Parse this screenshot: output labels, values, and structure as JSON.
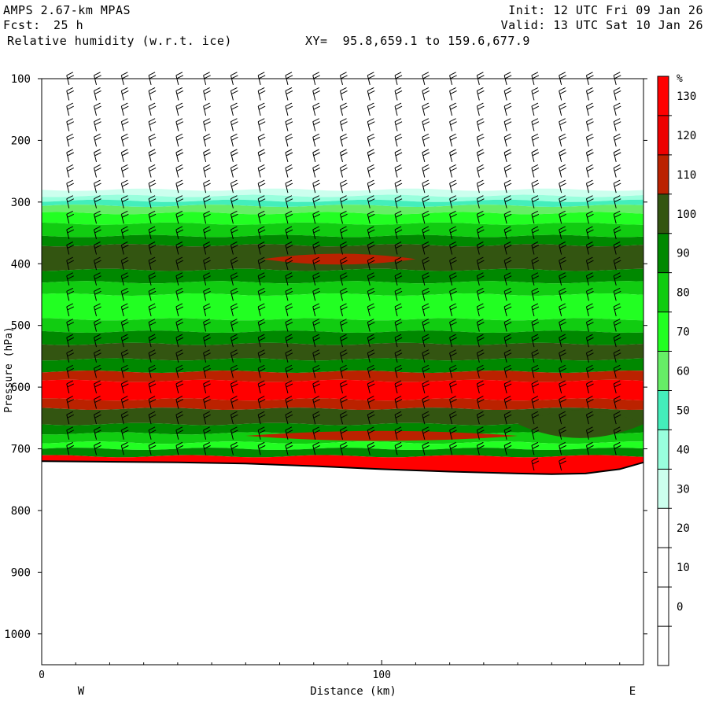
{
  "header": {
    "model": "AMPS 2.67-km MPAS",
    "init": "Init: 12 UTC Fri 09 Jan 26",
    "fcst_label": "Fcst:",
    "fcst_value": "25 h",
    "valid": "Valid: 13 UTC Sat 10 Jan 26",
    "field": "Relative humidity (w.r.t. ice)",
    "xy": "XY=  95.8,659.1 to 159.6,677.9"
  },
  "chart_data": {
    "type": "heatmap",
    "title": "Relative humidity (w.r.t. ice)",
    "xlabel": "Distance (km)",
    "ylabel": "Pressure (hPa)",
    "x_tick_labels": [
      "0",
      "100"
    ],
    "x_ticks": [
      0,
      100
    ],
    "xlim": [
      0,
      177
    ],
    "y_tick_labels": [
      "100",
      "200",
      "300",
      "400",
      "500",
      "600",
      "700",
      "800",
      "900",
      "1000"
    ],
    "y_ticks": [
      100,
      200,
      300,
      400,
      500,
      600,
      700,
      800,
      900,
      1000
    ],
    "ylim": [
      100,
      1050
    ],
    "direction_left": "W",
    "direction_right": "E",
    "colorbar": {
      "unit": "%",
      "levels": [
        0,
        10,
        20,
        30,
        40,
        50,
        60,
        70,
        80,
        90,
        100,
        110,
        120,
        130
      ],
      "colors": [
        "#ffffff",
        "#ffffff",
        "#ffffff",
        "#ccffee",
        "#99ffdd",
        "#44eebb",
        "#66ee66",
        "#22ff22",
        "#11cc11",
        "#008800",
        "#335511",
        "#bb2200",
        "#ee0000",
        "#ff0000"
      ]
    },
    "layers": [
      {
        "pmin": 280,
        "pmax": 290,
        "rh": 30
      },
      {
        "pmin": 290,
        "pmax": 298,
        "rh": 40
      },
      {
        "pmin": 298,
        "pmax": 306,
        "rh": 50
      },
      {
        "pmin": 306,
        "pmax": 318,
        "rh": 60
      },
      {
        "pmin": 318,
        "pmax": 335,
        "rh": 70
      },
      {
        "pmin": 335,
        "pmax": 355,
        "rh": 80
      },
      {
        "pmin": 355,
        "pmax": 370,
        "rh": 90
      },
      {
        "pmin": 370,
        "pmax": 410,
        "rh": 100
      },
      {
        "pmin": 410,
        "pmax": 430,
        "rh": 90
      },
      {
        "pmin": 430,
        "pmax": 450,
        "rh": 80
      },
      {
        "pmin": 450,
        "pmax": 490,
        "rh": 70
      },
      {
        "pmin": 490,
        "pmax": 510,
        "rh": 80
      },
      {
        "pmin": 510,
        "pmax": 530,
        "rh": 90
      },
      {
        "pmin": 530,
        "pmax": 555,
        "rh": 100
      },
      {
        "pmin": 555,
        "pmax": 575,
        "rh": 90
      },
      {
        "pmin": 575,
        "pmax": 590,
        "rh": 110
      },
      {
        "pmin": 590,
        "pmax": 620,
        "rh": 130
      },
      {
        "pmin": 620,
        "pmax": 635,
        "rh": 110
      },
      {
        "pmin": 635,
        "pmax": 660,
        "rh": 100
      },
      {
        "pmin": 660,
        "pmax": 675,
        "rh": 90
      },
      {
        "pmin": 675,
        "pmax": 690,
        "rh": 80
      },
      {
        "pmin": 690,
        "pmax": 700,
        "rh": 70
      },
      {
        "pmin": 700,
        "pmax": 712,
        "rh": 90
      },
      {
        "pmin": 712,
        "pmax": 745,
        "rh": 130
      }
    ],
    "features": [
      {
        "xmin": 65,
        "xmax": 110,
        "pmin": 380,
        "pmax": 405,
        "rh": 110
      },
      {
        "xmin": 60,
        "xmax": 140,
        "pmin": 668,
        "pmax": 690,
        "rh": 110
      },
      {
        "xmin": 140,
        "xmax": 177,
        "pmin": 620,
        "pmax": 700,
        "rh": 100
      }
    ],
    "terrain": {
      "x": [
        0,
        20,
        40,
        60,
        80,
        100,
        120,
        140,
        150,
        160,
        170,
        177
      ],
      "p": [
        720,
        721,
        722,
        724,
        728,
        733,
        737,
        740,
        741,
        740,
        733,
        722
      ]
    },
    "wind_barbs": {
      "columns": 21,
      "levels_every_hpa": 25
    }
  }
}
